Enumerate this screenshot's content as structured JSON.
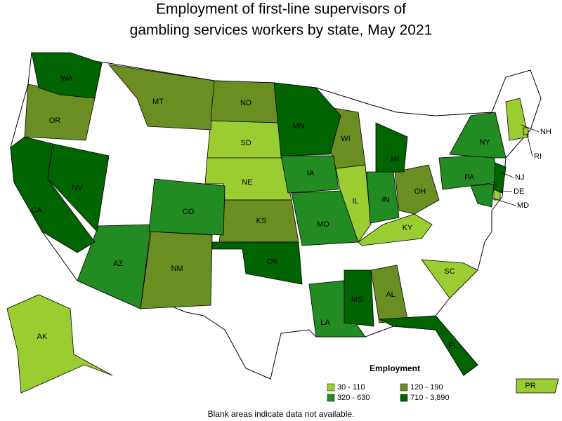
{
  "title": [
    "Employment of first-line supervisors of",
    "gambling services workers by state, May 2021"
  ],
  "legend": {
    "title": "Employment",
    "items": [
      {
        "label": "30 - 110",
        "color": "#9acd32",
        "states": [
          "SD",
          "NE",
          "IL",
          "KY",
          "SC",
          "NH",
          "DE",
          "RI",
          "AK",
          "PR"
        ]
      },
      {
        "label": "120 - 190",
        "color": "#6b8e23",
        "states": [
          "OR",
          "MT",
          "ND",
          "KS",
          "NM",
          "WI",
          "OH",
          "AL"
        ]
      },
      {
        "label": "320 - 630",
        "color": "#228b22",
        "states": [
          "AZ",
          "CO",
          "IA",
          "MO",
          "IN",
          "LA",
          "PA",
          "NY",
          "MD"
        ]
      },
      {
        "label": "710 - 3,890",
        "color": "#006400",
        "states": [
          "WA",
          "CA",
          "NV",
          "OK",
          "MN",
          "MI",
          "MS",
          "FL",
          "NJ"
        ]
      }
    ]
  },
  "footnote": "Blank areas indicate data not available."
}
